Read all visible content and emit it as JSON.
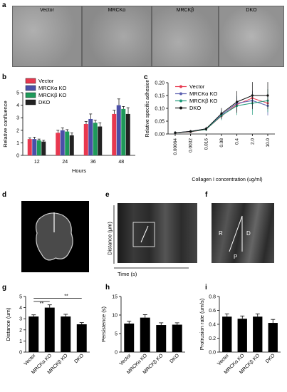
{
  "panel_letters": {
    "a": "a",
    "b": "b",
    "c": "c",
    "d": "d",
    "e": "e",
    "f": "f",
    "g": "g",
    "h": "h",
    "i": "i"
  },
  "micro_labels": [
    "Vector",
    "MRCKα",
    "MRCKβ",
    "DKO"
  ],
  "panel_e": {
    "ylabel": "Distance (μm)",
    "xlabel": "Time (s)"
  },
  "panel_f": {
    "labels": {
      "r": "R",
      "d": "D",
      "p": "P"
    }
  },
  "colors": {
    "vector": "#e8384f",
    "mrcka": "#4a4fa8",
    "mrckb": "#1e9a5a",
    "dko": "#222222",
    "line_vector": "#e8384f",
    "line_mrcka": "#5b5fb0",
    "line_mrckb": "#1f9a7a",
    "line_dko": "#111111"
  },
  "chart_data": [
    {
      "id": "b",
      "type": "bar",
      "categories": [
        "12",
        "24",
        "36",
        "48"
      ],
      "series": [
        {
          "name": "Vector",
          "values": [
            1.3,
            1.8,
            2.5,
            3.3
          ]
        },
        {
          "name": "MRCKα KO",
          "values": [
            1.3,
            2.0,
            2.9,
            4.0
          ]
        },
        {
          "name": "MRCKβ KO",
          "values": [
            1.2,
            1.9,
            2.6,
            3.7
          ]
        },
        {
          "name": "DKO",
          "values": [
            1.1,
            1.6,
            2.3,
            3.3
          ]
        }
      ],
      "errors": [
        [
          0.1,
          0.2,
          0.2,
          0.3
        ],
        [
          0.15,
          0.2,
          0.4,
          0.5
        ],
        [
          0.1,
          0.15,
          0.2,
          0.2
        ],
        [
          0.1,
          0.2,
          0.3,
          0.5
        ]
      ],
      "xlabel": "Hours",
      "ylabel": "Relative confluence",
      "ylim": [
        0,
        5
      ],
      "yticks": [
        "0",
        "1",
        "2",
        "3",
        "4",
        "5"
      ],
      "legend": "top-left"
    },
    {
      "id": "c",
      "type": "line",
      "x": [
        "0.00064",
        "0.0032",
        "0.016",
        "0.08",
        "0.4",
        "2.0",
        "10.0"
      ],
      "series": [
        {
          "name": "Vector",
          "values": [
            0.005,
            0.008,
            0.018,
            0.07,
            0.115,
            0.14,
            0.12
          ]
        },
        {
          "name": "MRCKα KO",
          "values": [
            0.005,
            0.01,
            0.02,
            0.075,
            0.12,
            0.13,
            0.11
          ]
        },
        {
          "name": "MRCKβ KO",
          "values": [
            0.005,
            0.009,
            0.018,
            0.072,
            0.11,
            0.12,
            0.13
          ]
        },
        {
          "name": "DKO",
          "values": [
            0.005,
            0.01,
            0.02,
            0.08,
            0.125,
            0.15,
            0.15
          ]
        }
      ],
      "errors": [
        0.005,
        0.005,
        0.008,
        0.02,
        0.04,
        0.05,
        0.05
      ],
      "xlabel": "Collagen I concentration (ug/ml)",
      "ylabel": "Relative specific adhesion",
      "ylim": [
        0,
        0.2
      ],
      "yticks": [
        "0.00",
        "0.05",
        "0.10",
        "0.15",
        "0.20"
      ],
      "legend": "top-left"
    },
    {
      "id": "g",
      "type": "bar",
      "categories": [
        "Vector",
        "MRCKα KO",
        "MRCKβ KO",
        "DKO"
      ],
      "values": [
        3.2,
        4.0,
        3.2,
        2.5
      ],
      "errors": [
        0.15,
        0.25,
        0.2,
        0.15
      ],
      "ylabel": "Distance (um)",
      "ylim": [
        0,
        5
      ],
      "yticks": [
        "0",
        "1",
        "2",
        "3",
        "4",
        "5"
      ],
      "significance": [
        "**",
        "**"
      ]
    },
    {
      "id": "h",
      "type": "bar",
      "categories": [
        "Vector",
        "MRCKα KO",
        "MRCKβ KO",
        "DKO"
      ],
      "values": [
        7.7,
        9.3,
        7.3,
        7.4
      ],
      "errors": [
        0.6,
        0.8,
        0.6,
        0.5
      ],
      "ylabel": "Persistence (s)",
      "ylim": [
        0,
        15
      ],
      "yticks": [
        "0",
        "5",
        "10",
        "15"
      ]
    },
    {
      "id": "i",
      "type": "bar",
      "categories": [
        "Vector",
        "MRCKα KO",
        "MRCKβ KO",
        "DKO"
      ],
      "values": [
        0.51,
        0.48,
        0.51,
        0.42
      ],
      "errors": [
        0.04,
        0.04,
        0.04,
        0.05
      ],
      "ylabel": "Protrusion rate (um/s)",
      "ylim": [
        0,
        0.8
      ],
      "yticks": [
        "0.0",
        "0.2",
        "0.4",
        "0.6",
        "0.8"
      ]
    }
  ]
}
